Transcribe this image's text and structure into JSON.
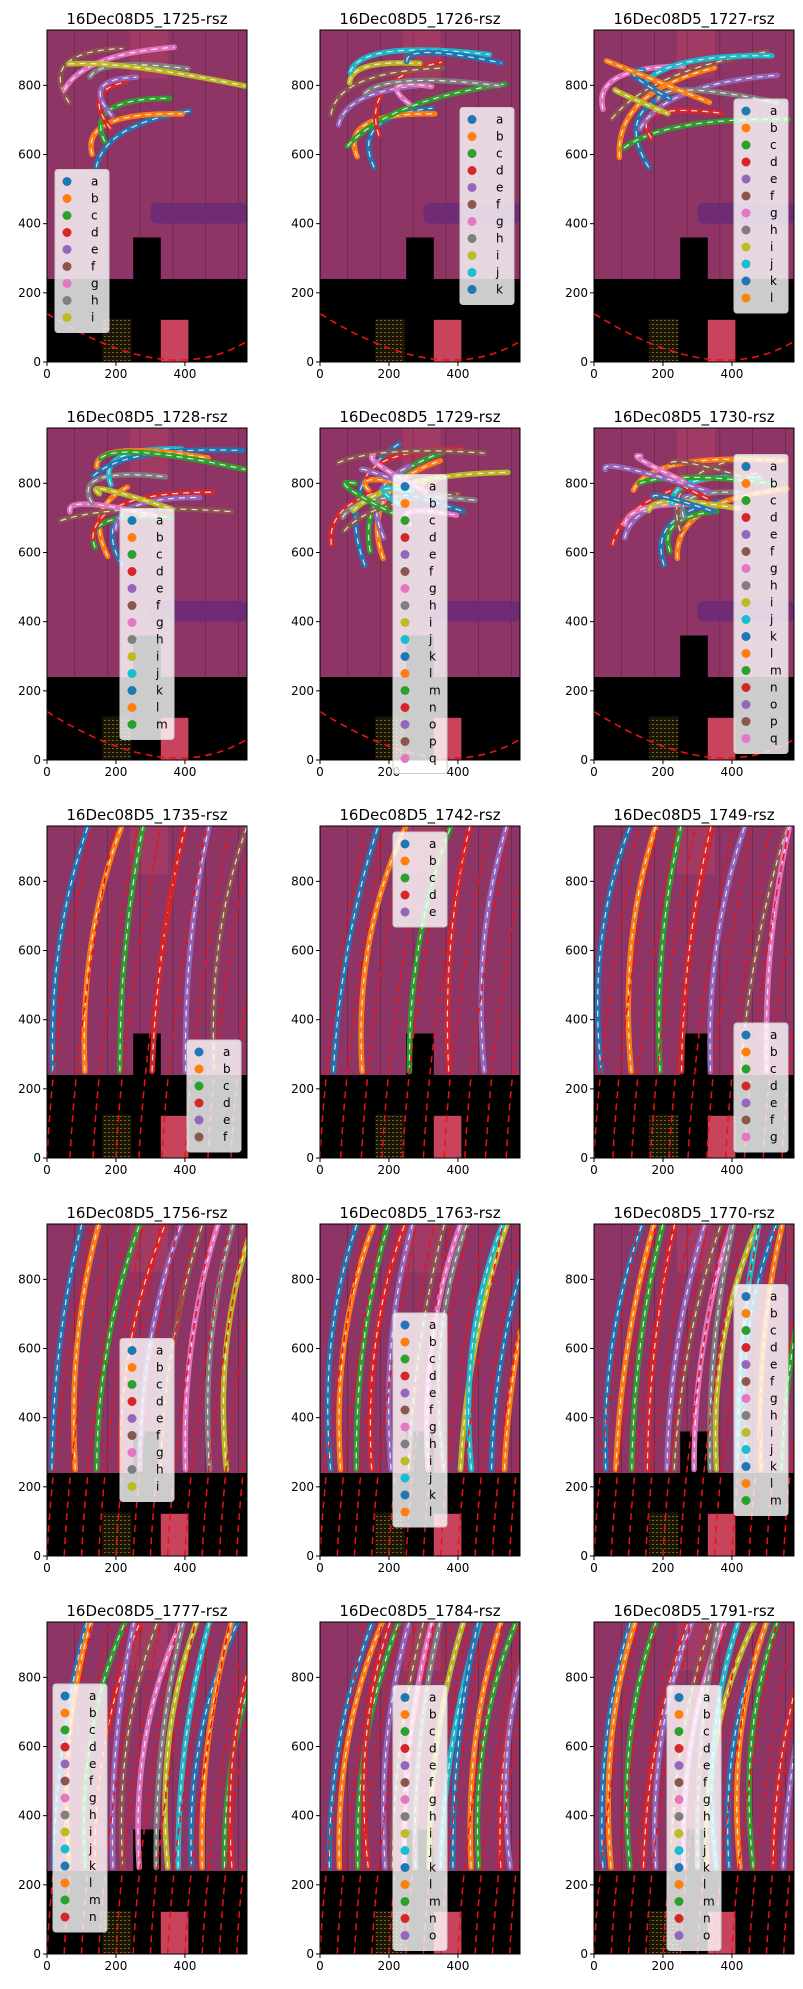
{
  "figure": {
    "tick_labels_x": [
      "0",
      "200",
      "400"
    ],
    "tick_labels_y": [
      "0",
      "200",
      "400",
      "600",
      "800"
    ],
    "colors": {
      "background_magenta": "#8e3566",
      "upper_band": "#b13f65",
      "floor": "#000000",
      "target_square": "#c8435c",
      "grate": "#6b5820",
      "blob": "#6a2a78",
      "fit_line": "#ee1111"
    },
    "palette": [
      "#1f77b4",
      "#ff7f0e",
      "#2ca02c",
      "#d62728",
      "#9467bd",
      "#8c564b",
      "#e377c2",
      "#7f7f7f",
      "#bcbd22",
      "#17becf"
    ]
  },
  "chart_data": [
    {
      "type": "image-overlay-scatter",
      "title": "16Dec08D5_1725-rsz",
      "xlim": [
        0,
        580
      ],
      "ylim": [
        0,
        960
      ],
      "legend": [
        "a",
        "b",
        "c",
        "d",
        "e",
        "f",
        "g",
        "h",
        "i"
      ],
      "legend_position": "center-left",
      "fit_curves": [
        "arc"
      ]
    },
    {
      "type": "image-overlay-scatter",
      "title": "16Dec08D5_1726-rsz",
      "xlim": [
        0,
        580
      ],
      "ylim": [
        0,
        960
      ],
      "legend": [
        "a",
        "b",
        "c",
        "d",
        "e",
        "f",
        "g",
        "h",
        "i",
        "j",
        "k"
      ],
      "legend_position": "center-right",
      "fit_curves": [
        "arc"
      ]
    },
    {
      "type": "image-overlay-scatter",
      "title": "16Dec08D5_1727-rsz",
      "xlim": [
        0,
        580
      ],
      "ylim": [
        0,
        960
      ],
      "legend": [
        "a",
        "b",
        "c",
        "d",
        "e",
        "f",
        "g",
        "h",
        "i",
        "j",
        "k",
        "l"
      ],
      "legend_position": "center-right",
      "fit_curves": [
        "arc"
      ]
    },
    {
      "type": "image-overlay-scatter",
      "title": "16Dec08D5_1728-rsz",
      "xlim": [
        0,
        580
      ],
      "ylim": [
        0,
        960
      ],
      "legend": [
        "a",
        "b",
        "c",
        "d",
        "e",
        "f",
        "g",
        "h",
        "i",
        "j",
        "k",
        "l",
        "m"
      ],
      "legend_position": "center",
      "fit_curves": [
        "arc"
      ]
    },
    {
      "type": "image-overlay-scatter",
      "title": "16Dec08D5_1729-rsz",
      "xlim": [
        0,
        580
      ],
      "ylim": [
        0,
        960
      ],
      "legend": [
        "a",
        "b",
        "c",
        "d",
        "e",
        "f",
        "g",
        "h",
        "i",
        "j",
        "k",
        "l",
        "m",
        "n",
        "o",
        "p",
        "q"
      ],
      "legend_position": "center",
      "fit_curves": [
        "arc"
      ]
    },
    {
      "type": "image-overlay-scatter",
      "title": "16Dec08D5_1730-rsz",
      "xlim": [
        0,
        580
      ],
      "ylim": [
        0,
        960
      ],
      "legend": [
        "a",
        "b",
        "c",
        "d",
        "e",
        "f",
        "g",
        "h",
        "i",
        "j",
        "k",
        "l",
        "m",
        "n",
        "o",
        "p",
        "q"
      ],
      "legend_position": "center-right",
      "fit_curves": [
        "arc"
      ]
    },
    {
      "type": "image-overlay-scatter",
      "title": "16Dec08D5_1735-rsz",
      "xlim": [
        0,
        580
      ],
      "ylim": [
        0,
        960
      ],
      "legend": [
        "a",
        "b",
        "c",
        "d",
        "e",
        "f"
      ],
      "legend_position": "lower-right",
      "fit_curves": [
        "arcs"
      ]
    },
    {
      "type": "image-overlay-scatter",
      "title": "16Dec08D5_1742-rsz",
      "xlim": [
        0,
        580
      ],
      "ylim": [
        0,
        960
      ],
      "legend": [
        "a",
        "b",
        "c",
        "d",
        "e"
      ],
      "legend_position": "upper-center",
      "fit_curves": [
        "arcs"
      ]
    },
    {
      "type": "image-overlay-scatter",
      "title": "16Dec08D5_1749-rsz",
      "xlim": [
        0,
        580
      ],
      "ylim": [
        0,
        960
      ],
      "legend": [
        "a",
        "b",
        "c",
        "d",
        "e",
        "f",
        "g"
      ],
      "legend_position": "lower-right",
      "fit_curves": [
        "arcs"
      ]
    },
    {
      "type": "image-overlay-scatter",
      "title": "16Dec08D5_1756-rsz",
      "xlim": [
        0,
        580
      ],
      "ylim": [
        0,
        960
      ],
      "legend": [
        "a",
        "b",
        "c",
        "d",
        "e",
        "f",
        "g",
        "h",
        "i"
      ],
      "legend_position": "center",
      "fit_curves": [
        "arcs"
      ]
    },
    {
      "type": "image-overlay-scatter",
      "title": "16Dec08D5_1763-rsz",
      "xlim": [
        0,
        580
      ],
      "ylim": [
        0,
        960
      ],
      "legend": [
        "a",
        "b",
        "c",
        "d",
        "e",
        "f",
        "g",
        "h",
        "i",
        "j",
        "k",
        "l"
      ],
      "legend_position": "center",
      "fit_curves": [
        "arcs"
      ]
    },
    {
      "type": "image-overlay-scatter",
      "title": "16Dec08D5_1770-rsz",
      "xlim": [
        0,
        580
      ],
      "ylim": [
        0,
        960
      ],
      "legend": [
        "a",
        "b",
        "c",
        "d",
        "e",
        "f",
        "g",
        "h",
        "i",
        "j",
        "k",
        "l",
        "m"
      ],
      "legend_position": "center-right",
      "fit_curves": [
        "arcs"
      ]
    },
    {
      "type": "image-overlay-scatter",
      "title": "16Dec08D5_1777-rsz",
      "xlim": [
        0,
        580
      ],
      "ylim": [
        0,
        960
      ],
      "legend": [
        "a",
        "b",
        "c",
        "d",
        "e",
        "f",
        "g",
        "h",
        "i",
        "j",
        "k",
        "l",
        "m",
        "n"
      ],
      "legend_position": "left",
      "fit_curves": [
        "arcs"
      ]
    },
    {
      "type": "image-overlay-scatter",
      "title": "16Dec08D5_1784-rsz",
      "xlim": [
        0,
        580
      ],
      "ylim": [
        0,
        960
      ],
      "legend": [
        "a",
        "b",
        "c",
        "d",
        "e",
        "f",
        "g",
        "h",
        "i",
        "j",
        "k",
        "l",
        "m",
        "n",
        "o"
      ],
      "legend_position": "center",
      "fit_curves": [
        "arcs"
      ]
    },
    {
      "type": "image-overlay-scatter",
      "title": "16Dec08D5_1791-rsz",
      "xlim": [
        0,
        580
      ],
      "ylim": [
        0,
        960
      ],
      "legend": [
        "a",
        "b",
        "c",
        "d",
        "e",
        "f",
        "g",
        "h",
        "i",
        "j",
        "k",
        "l",
        "m",
        "n",
        "o"
      ],
      "legend_position": "center",
      "fit_curves": [
        "arcs"
      ]
    }
  ]
}
